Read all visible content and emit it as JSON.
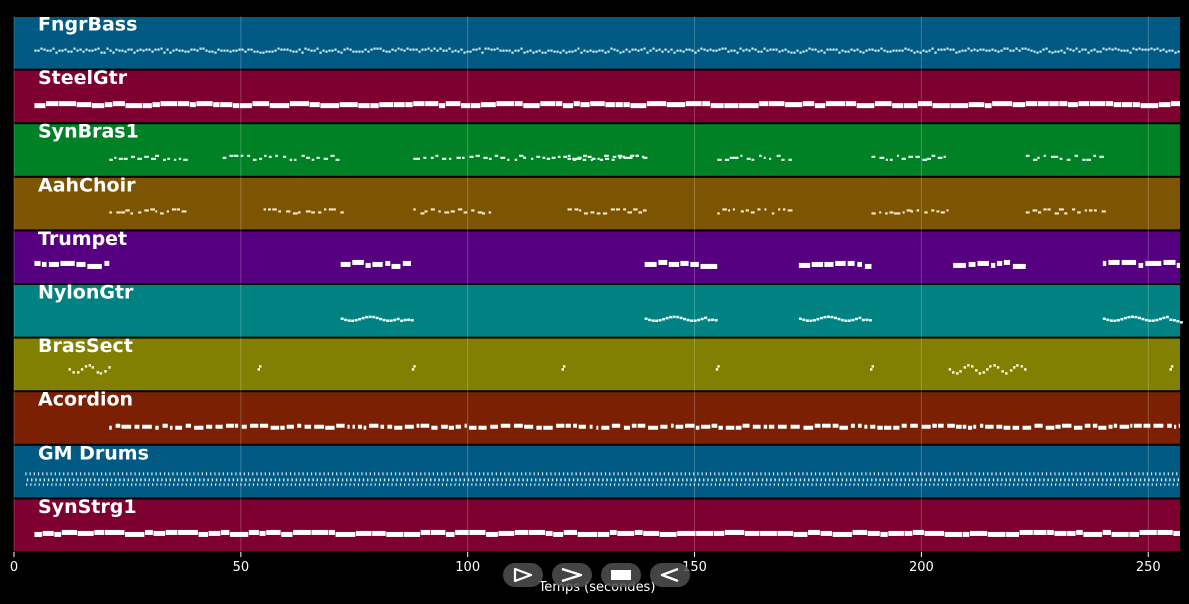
{
  "chart_data": {
    "type": "piano-roll",
    "xlabel": "Temps (secondes)",
    "xlim": [
      0,
      257
    ],
    "xticks": [
      0,
      50,
      100,
      150,
      200,
      250
    ],
    "grid": true,
    "tracks": [
      {
        "name": "FngrBass",
        "color": "#015a84",
        "style": "dense-small",
        "note_color": "#cfe8f5",
        "segments": [
          [
            4.5,
            257
          ]
        ]
      },
      {
        "name": "SteelGtr",
        "color": "#7e0030",
        "style": "solid-thick",
        "note_color": "#ffffff",
        "segments": [
          [
            4.5,
            257
          ]
        ]
      },
      {
        "name": "SynBras1",
        "color": "#008126",
        "style": "sparse",
        "note_color": "#e6f5ea",
        "segments": [
          [
            21,
            38
          ],
          [
            46,
            72
          ],
          [
            88,
            139
          ],
          [
            122,
            139
          ],
          [
            155,
            172
          ],
          [
            189,
            206
          ],
          [
            223,
            240
          ]
        ]
      },
      {
        "name": "AahChoir",
        "color": "#7d5402",
        "style": "sparse",
        "note_color": "#f3e6c8",
        "segments": [
          [
            21,
            38
          ],
          [
            55,
            72
          ],
          [
            88,
            106
          ],
          [
            122,
            139
          ],
          [
            155,
            172
          ],
          [
            189,
            206
          ],
          [
            223,
            240
          ]
        ]
      },
      {
        "name": "Trumpet",
        "color": "#560081",
        "style": "blocks",
        "note_color": "#ffffff",
        "segments": [
          [
            4.5,
            21
          ],
          [
            72,
            87.5
          ],
          [
            139,
            155
          ],
          [
            173,
            189
          ],
          [
            207,
            223
          ],
          [
            240,
            257
          ]
        ]
      },
      {
        "name": "NylonGtr",
        "color": "#018282",
        "style": "wavy",
        "note_color": "#e6fafa",
        "segments": [
          [
            72,
            87.5
          ],
          [
            139,
            155
          ],
          [
            173,
            189
          ],
          [
            240,
            257
          ]
        ]
      },
      {
        "name": "BrasSect",
        "color": "#818003",
        "style": "accents",
        "note_color": "#f6f6d8",
        "segments": [
          [
            12,
            21
          ],
          [
            54,
            55
          ],
          [
            88,
            89
          ],
          [
            121,
            122
          ],
          [
            155,
            156
          ],
          [
            189,
            190
          ],
          [
            206,
            223
          ],
          [
            255,
            257
          ]
        ]
      },
      {
        "name": "Acordion",
        "color": "#7b2003",
        "style": "dashed",
        "note_color": "#ffffff",
        "segments": [
          [
            21,
            257
          ]
        ]
      },
      {
        "name": "GM Drums",
        "color": "#015a84",
        "style": "drums",
        "note_color": "#cfe8f5",
        "segments": [
          [
            2.5,
            257
          ]
        ]
      },
      {
        "name": "SynStrg1",
        "color": "#7e0030",
        "style": "solid-thick",
        "note_color": "#ffffff",
        "segments": [
          [
            4.5,
            257
          ]
        ]
      }
    ]
  },
  "controls": {
    "icons": [
      "play-outline-icon",
      "fast-forward-icon",
      "stop-icon",
      "rewind-icon"
    ]
  }
}
